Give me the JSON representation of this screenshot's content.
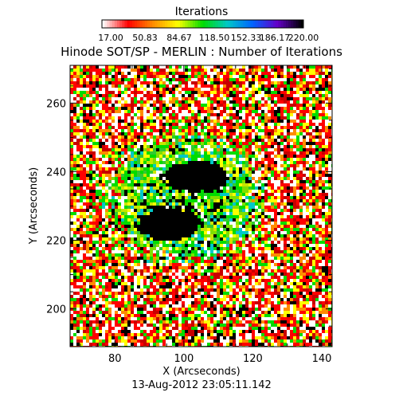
{
  "chart_data": {
    "type": "heatmap",
    "title": "Hinode SOT/SP - MERLIN : Number of Iterations",
    "colorbar": {
      "label": "Iterations",
      "ticks": [
        "17.00",
        "50.83",
        "84.67",
        "118.50",
        "152.33",
        "186.17",
        "220.00"
      ],
      "range": [
        17,
        220
      ],
      "colors": [
        "#ffffff",
        "#ff0000",
        "#ff8c00",
        "#ffff00",
        "#00dc00",
        "#00c8c8",
        "#0064ff",
        "#6400c8",
        "#000000"
      ]
    },
    "xlabel": "X (Arcseconds)",
    "ylabel": "Y (Arcseconds)",
    "xlim": [
      67,
      143
    ],
    "ylim": [
      189,
      271
    ],
    "xticks": [
      80,
      100,
      120,
      140
    ],
    "yticks": [
      200,
      220,
      240,
      260
    ],
    "grid": false,
    "features": [
      {
        "name": "umbra",
        "x": 103,
        "y": 239,
        "value_range": "high (black)"
      },
      {
        "name": "umbra",
        "x": 95,
        "y": 225,
        "value_range": "high (black)"
      },
      {
        "name": "penumbra",
        "x": 100,
        "y": 232,
        "value_range": "mid (green/yellow)"
      },
      {
        "name": "quiet sun",
        "x": 125,
        "y": 205,
        "value_range": "low (red/white) mixed"
      }
    ],
    "timestamp": "13-Aug-2012 23:05:11.142"
  }
}
